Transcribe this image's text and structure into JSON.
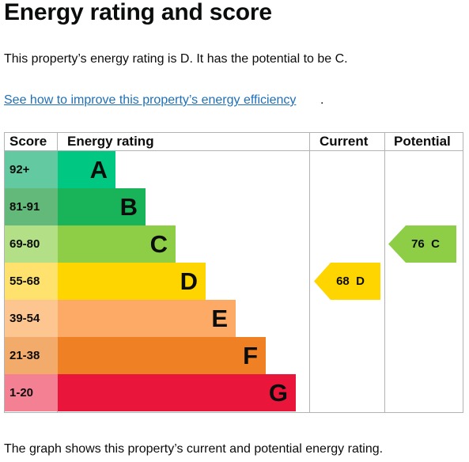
{
  "heading": "Energy rating and score",
  "intro_text": "This property’s energy rating is D. It has the potential to be C.",
  "improve_link": "See how to improve this property’s energy efficiency",
  "improve_link_suffix": ".",
  "graph": {
    "headers": {
      "score": "Score",
      "energy_rating": "Energy rating",
      "current": "Current",
      "potential": "Potential"
    },
    "bands": [
      {
        "score": "92+",
        "letter": "A",
        "score_color": "#63c9a0",
        "bar_color": "#00c781"
      },
      {
        "score": "81-91",
        "letter": "B",
        "score_color": "#63b97a",
        "bar_color": "#19b459"
      },
      {
        "score": "69-80",
        "letter": "C",
        "score_color": "#b3df86",
        "bar_color": "#8dce46"
      },
      {
        "score": "55-68",
        "letter": "D",
        "score_color": "#ffe26d",
        "bar_color": "#ffd500"
      },
      {
        "score": "39-54",
        "letter": "E",
        "score_color": "#fdc690",
        "bar_color": "#fcaa65"
      },
      {
        "score": "21-38",
        "letter": "F",
        "score_color": "#f3ab6b",
        "bar_color": "#ef8023"
      },
      {
        "score": "1-20",
        "letter": "G",
        "score_color": "#f48093",
        "bar_color": "#e9153b"
      }
    ],
    "current": {
      "label": "68  D",
      "score": 68,
      "band": "D",
      "color": "#ffd500"
    },
    "potential": {
      "label": "76  C",
      "score": 76,
      "band": "C",
      "color": "#8dce46"
    }
  },
  "caption": "The graph shows this property’s current and potential energy rating."
}
